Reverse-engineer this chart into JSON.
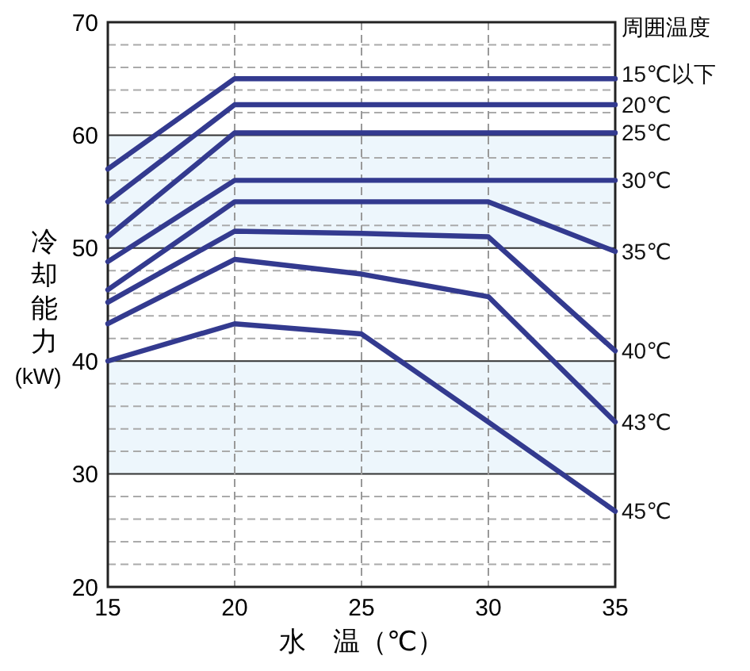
{
  "chart_data": {
    "type": "line",
    "xlabel": "水　温（℃）",
    "ylabel": "冷却能力(kW)",
    "legend_title": "周囲温度",
    "x": [
      15,
      20,
      25,
      30,
      35
    ],
    "xlim": [
      15,
      35
    ],
    "xticks": [
      15,
      20,
      25,
      30,
      35
    ],
    "ylim": [
      20,
      70
    ],
    "yticks": [
      20,
      {
        "value": 22,
        "label": null
      },
      {
        "value": 24,
        "label": null
      },
      {
        "value": 26,
        "label": null
      },
      {
        "value": 28,
        "label": null
      },
      30,
      {
        "value": 32,
        "label": null
      },
      {
        "value": 34,
        "label": null
      },
      {
        "value": 36,
        "label": null
      },
      {
        "value": 38,
        "label": null
      },
      40,
      {
        "value": 42,
        "label": null
      },
      {
        "value": 44,
        "label": null
      },
      {
        "value": 46,
        "label": null
      },
      {
        "value": 48,
        "label": null
      },
      50,
      {
        "value": 52,
        "label": null
      },
      {
        "value": 54,
        "label": null
      },
      {
        "value": 56,
        "label": null
      },
      {
        "value": 58,
        "label": null
      },
      60,
      {
        "value": 62,
        "label": null
      },
      {
        "value": 64,
        "label": null
      },
      {
        "value": 66,
        "label": null
      },
      {
        "value": 68,
        "label": null
      },
      70
    ],
    "grid": true,
    "legend": false,
    "marker": "none",
    "line_style": "solid",
    "bands": [
      {
        "axis": "y",
        "from": 30,
        "to": 40,
        "color": "#edf6fc"
      },
      {
        "axis": "y",
        "from": 50,
        "to": 60,
        "color": "#edf6fc"
      }
    ],
    "series": [
      {
        "name": "15℃以下",
        "color": "#333a8f",
        "values": [
          57,
          65,
          65,
          65,
          65
        ]
      },
      {
        "name": "20℃",
        "color": "#333a8f",
        "values": [
          54.1,
          62.7,
          62.7,
          62.7,
          62.7
        ]
      },
      {
        "name": "25℃",
        "color": "#333a8f",
        "values": [
          51,
          60.2,
          60.2,
          60.2,
          60.2
        ]
      },
      {
        "name": "30℃",
        "color": "#333a8f",
        "values": [
          48.8,
          56,
          56,
          56,
          56
        ]
      },
      {
        "name": "35℃",
        "color": "#333a8f",
        "values": [
          46.3,
          54.1,
          54.1,
          54.1,
          49.7
        ]
      },
      {
        "name": "40℃",
        "color": "#333a8f",
        "values": [
          45.2,
          51.5,
          51.3,
          51,
          40.9
        ]
      },
      {
        "name": "43℃",
        "color": "#333a8f",
        "values": [
          43.3,
          49,
          47.7,
          45.7,
          34.6
        ]
      },
      {
        "name": "45℃",
        "color": "#333a8f",
        "values": [
          40,
          43.3,
          42.4,
          34.6,
          26.7
        ]
      }
    ]
  }
}
